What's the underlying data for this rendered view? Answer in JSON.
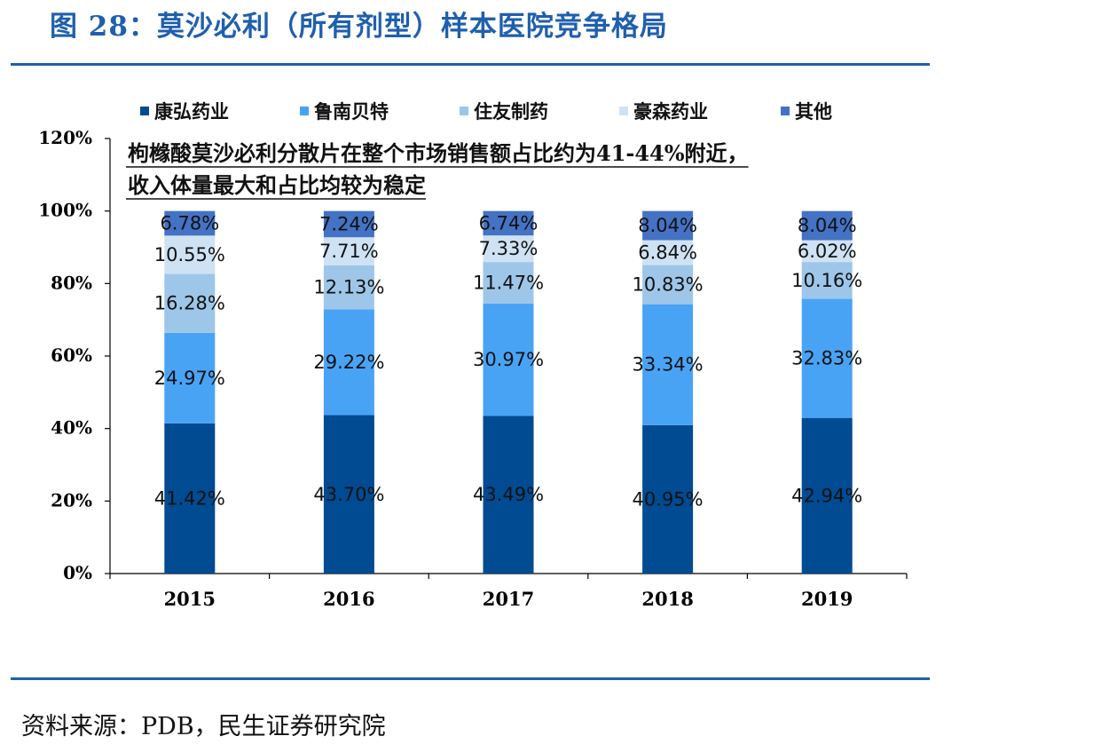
{
  "figure": {
    "title": "图 28：莫沙必利（所有剂型）样本医院竞争格局",
    "source": "资料来源：PDB，民生证券研究院"
  },
  "chart_data": {
    "type": "bar",
    "stacked": true,
    "categories": [
      "2015",
      "2016",
      "2017",
      "2018",
      "2019"
    ],
    "series": [
      {
        "name": "康弘药业",
        "color": "#004b92",
        "values": [
          41.42,
          43.7,
          43.49,
          40.95,
          42.94
        ]
      },
      {
        "name": "鲁南贝特",
        "color": "#49a3f5",
        "values": [
          24.97,
          29.22,
          30.97,
          33.34,
          32.83
        ]
      },
      {
        "name": "住友制药",
        "color": "#9ec6e8",
        "values": [
          16.28,
          12.13,
          11.47,
          10.83,
          10.16
        ]
      },
      {
        "name": "豪森药业",
        "color": "#cfe2f3",
        "values": [
          10.55,
          7.71,
          7.33,
          6.84,
          6.02
        ]
      },
      {
        "name": "其他",
        "color": "#4472c4",
        "values": [
          6.78,
          7.24,
          6.74,
          8.04,
          8.04
        ]
      }
    ],
    "data_labels": [
      [
        "41.42%",
        "43.70%",
        "43.49%",
        "40.95%",
        "42.94%"
      ],
      [
        "24.97%",
        "29.22%",
        "30.97%",
        "33.34%",
        "32.83%"
      ],
      [
        "16.28%",
        "12.13%",
        "11.47%",
        "10.83%",
        "10.16%"
      ],
      [
        "10.55%",
        "7.71%",
        "7.33%",
        "6.84%",
        "6.02%"
      ],
      [
        "6.78%",
        "7.24%",
        "6.74%",
        "8.04%",
        "8.04%"
      ]
    ],
    "ylim": [
      0,
      120
    ],
    "yticks": [
      0,
      20,
      40,
      60,
      80,
      100,
      120
    ],
    "ytick_labels": [
      "0%",
      "20%",
      "40%",
      "60%",
      "80%",
      "100%",
      "120%"
    ],
    "legend_position": "top",
    "grid": false,
    "annotation": [
      "枸橼酸莫沙必利分散片在整个市场销售额占比约为41-44%附近，",
      "收入体量最大和占比均较为稳定"
    ]
  }
}
